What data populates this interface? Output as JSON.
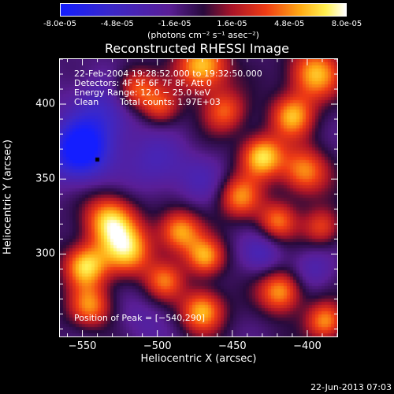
{
  "colorbar": {
    "labels": [
      "-8.0e-05",
      "-4.8e-05",
      "-1.6e-05",
      "1.6e-05",
      "4.8e-05",
      "8.0e-05"
    ],
    "min": -8e-05,
    "max": 8e-05,
    "units": "(photons cm⁻² s⁻¹ asec⁻²)"
  },
  "chart_data": {
    "type": "heatmap",
    "title": "Reconstructed RHESSI Image",
    "xlabel": "Heliocentric X (arcsec)",
    "ylabel": "Heliocentric Y (arcsec)",
    "xlim": [
      -565,
      -380
    ],
    "ylim": [
      245,
      430
    ],
    "xticks": [
      -550,
      -500,
      -450,
      -400
    ],
    "yticks": [
      300,
      350,
      400
    ],
    "xtick_labels": [
      "−550",
      "−500",
      "−450",
      "−400"
    ],
    "ytick_labels": [
      "300",
      "350",
      "400"
    ],
    "colormap": "blue-purple-red-yellow-white",
    "annotations": {
      "time": "22-Feb-2004 19:28:52.000 to 19:32:50.000",
      "detectors": "Detectors: 4F 5F 6F 7F 8F, Att 0",
      "energy": "Energy Range: 12.0 − 25.0 keV",
      "method": "Clean",
      "counts": "Total counts: 1.97E+03",
      "peak": "Position of Peak = [−540,290]"
    },
    "marker_point": {
      "x": -540,
      "y": 363
    },
    "blobs": [
      {
        "x": -552,
        "y": 368,
        "v": -0.95,
        "s": 14
      },
      {
        "x": -535,
        "y": 395,
        "v": -0.45,
        "s": 18
      },
      {
        "x": -515,
        "y": 410,
        "v": 0.75,
        "s": 10
      },
      {
        "x": -498,
        "y": 398,
        "v": 0.55,
        "s": 9
      },
      {
        "x": -470,
        "y": 425,
        "v": 0.9,
        "s": 12
      },
      {
        "x": -455,
        "y": 395,
        "v": 0.6,
        "s": 10
      },
      {
        "x": -395,
        "y": 420,
        "v": 0.85,
        "s": 12
      },
      {
        "x": -410,
        "y": 392,
        "v": 0.8,
        "s": 10
      },
      {
        "x": -430,
        "y": 365,
        "v": 0.95,
        "s": 10
      },
      {
        "x": -402,
        "y": 355,
        "v": 0.75,
        "s": 11
      },
      {
        "x": -445,
        "y": 338,
        "v": 0.7,
        "s": 10
      },
      {
        "x": -420,
        "y": 322,
        "v": 0.65,
        "s": 9
      },
      {
        "x": -390,
        "y": 318,
        "v": 0.55,
        "s": 9
      },
      {
        "x": -532,
        "y": 322,
        "v": 0.9,
        "s": 12
      },
      {
        "x": -520,
        "y": 302,
        "v": 0.85,
        "s": 12
      },
      {
        "x": -548,
        "y": 292,
        "v": 0.9,
        "s": 10
      },
      {
        "x": -485,
        "y": 315,
        "v": 0.8,
        "s": 10
      },
      {
        "x": -468,
        "y": 298,
        "v": 0.75,
        "s": 9
      },
      {
        "x": -495,
        "y": 282,
        "v": 0.6,
        "s": 9
      },
      {
        "x": -545,
        "y": 265,
        "v": 0.7,
        "s": 10
      },
      {
        "x": -470,
        "y": 262,
        "v": 0.85,
        "s": 10
      },
      {
        "x": -418,
        "y": 275,
        "v": 0.8,
        "s": 10
      },
      {
        "x": -388,
        "y": 255,
        "v": 0.75,
        "s": 9
      },
      {
        "x": -500,
        "y": 360,
        "v": -0.35,
        "s": 14
      },
      {
        "x": -470,
        "y": 350,
        "v": -0.25,
        "s": 12
      },
      {
        "x": -430,
        "y": 300,
        "v": -0.35,
        "s": 10
      },
      {
        "x": -510,
        "y": 255,
        "v": -0.2,
        "s": 12
      },
      {
        "x": -395,
        "y": 290,
        "v": -0.3,
        "s": 10
      }
    ]
  },
  "timestamp": "22-Jun-2013 07:03"
}
